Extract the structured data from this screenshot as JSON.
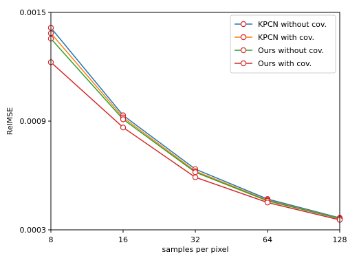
{
  "chart_data": {
    "type": "line",
    "xlabel": "samples per pixel",
    "ylabel": "RelMSE",
    "x": [
      8,
      16,
      32,
      64,
      128
    ],
    "x_tick_labels": [
      "8",
      "16",
      "32",
      "64",
      "128"
    ],
    "x_scale": "log2",
    "y_ticks": [
      0.0003,
      0.0009,
      0.0015
    ],
    "y_tick_labels": [
      "0.0003",
      "0.0009",
      "0.0015"
    ],
    "ylim": [
      0.0003,
      0.0015
    ],
    "grid": false,
    "legend_position": "top-right",
    "marker": "open-circle-red",
    "series": [
      {
        "name": "KPCN without cov.",
        "color": "#1f77b4",
        "values": [
          0.001415,
          0.000932,
          0.000635,
          0.00047,
          0.000366
        ]
      },
      {
        "name": "KPCN with cov.",
        "color": "#ff7f0e",
        "values": [
          0.001385,
          0.00092,
          0.000624,
          0.000464,
          0.000363
        ]
      },
      {
        "name": "Ours without cov.",
        "color": "#2ca02c",
        "values": [
          0.001355,
          0.00091,
          0.000618,
          0.00046,
          0.000362
        ]
      },
      {
        "name": "Ours with cov.",
        "color": "#d62728",
        "values": [
          0.001225,
          0.000865,
          0.00059,
          0.000451,
          0.000355
        ]
      }
    ]
  }
}
